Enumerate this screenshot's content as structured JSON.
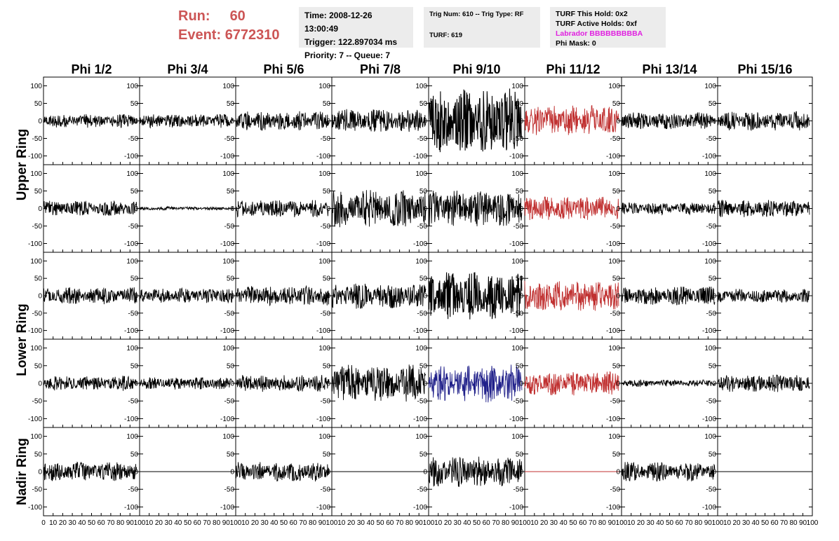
{
  "header": {
    "run_label": "Run:",
    "run_value": "60",
    "event_label": "Event:",
    "event_value": "6772310",
    "time": "Time: 2008-12-26 13:00:49",
    "trigger": "Trigger: 122.897034 ms",
    "priority": "Priority: 7 -- Queue: 7",
    "trig_num": "Trig Num: 610 -- Trig Type: RF",
    "turf": "TURF: 619",
    "turf_this_hold": "TURF This Hold: 0x2",
    "turf_active_holds": "TURF Active Holds: 0xf",
    "labrador": "Labrador BBBBBBBBBA",
    "phi_mask": "Phi Mask: 0"
  },
  "colors": {
    "run_text": "#cc5555",
    "labrador_text": "#e020e0",
    "trace_default": "#000000",
    "trace_red": "#c03030",
    "trace_blue": "#20208a"
  },
  "chart_data": {
    "type": "line",
    "columns": [
      "Phi 1/2",
      "Phi 3/4",
      "Phi 5/6",
      "Phi 7/8",
      "Phi 9/10",
      "Phi 11/12",
      "Phi 13/14",
      "Phi 15/16"
    ],
    "rows": [
      "Upper Ring",
      "Upper Ring",
      "Lower Ring",
      "Lower Ring",
      "Nadir Ring"
    ],
    "row_labels": [
      {
        "label": "Upper Ring",
        "rows": [
          0,
          1
        ]
      },
      {
        "label": "Lower Ring",
        "rows": [
          2,
          3
        ]
      },
      {
        "label": "Nadir Ring",
        "rows": [
          4
        ]
      }
    ],
    "ylim": [
      -125,
      125
    ],
    "yticks": [
      -100,
      -50,
      0,
      50,
      100
    ],
    "xlim": [
      0,
      100
    ],
    "xticks": [
      0,
      10,
      20,
      30,
      40,
      50,
      60,
      70,
      80,
      90,
      100
    ],
    "xtick_labels_first": [
      "0",
      "10",
      "20",
      "30",
      "40",
      "50",
      "60",
      "70",
      "80",
      "90",
      "100"
    ],
    "xtick_labels_rest": [
      "10",
      "20",
      "30",
      "40",
      "50",
      "60",
      "70",
      "80",
      "90",
      "100"
    ],
    "x_extent": 97,
    "amplitudes": [
      [
        20,
        20,
        28,
        35,
        95,
        45,
        25,
        28
      ],
      [
        22,
        5,
        25,
        55,
        55,
        35,
        18,
        25
      ],
      [
        25,
        22,
        28,
        38,
        70,
        45,
        28,
        20
      ],
      [
        22,
        18,
        25,
        55,
        55,
        35,
        10,
        25
      ],
      [
        28,
        0,
        28,
        0,
        45,
        0,
        28,
        0
      ]
    ],
    "colors": [
      [
        "k",
        "k",
        "k",
        "k",
        "k",
        "r",
        "k",
        "k"
      ],
      [
        "k",
        "k",
        "k",
        "k",
        "k",
        "r",
        "k",
        "k"
      ],
      [
        "k",
        "k",
        "k",
        "k",
        "k",
        "r",
        "k",
        "k"
      ],
      [
        "k",
        "k",
        "k",
        "k",
        "b",
        "r",
        "k",
        "k"
      ],
      [
        "k",
        "k",
        "k",
        "k",
        "k",
        "r",
        "k",
        "k"
      ]
    ]
  }
}
